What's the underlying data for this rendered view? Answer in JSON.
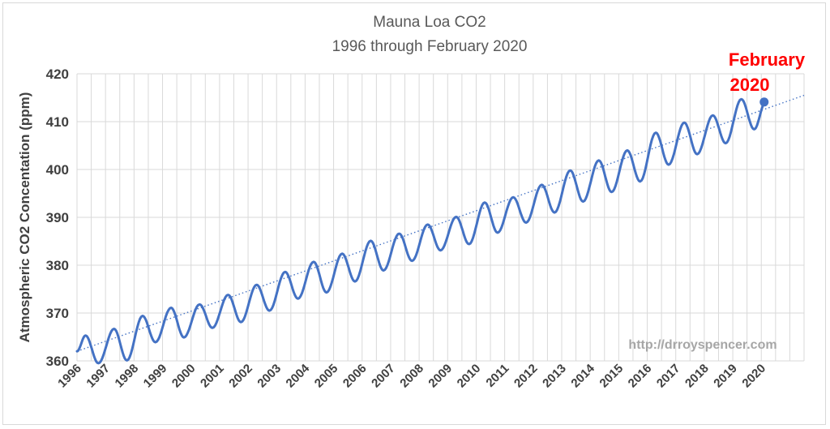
{
  "chart_data": {
    "type": "line",
    "title": "Mauna Loa CO2",
    "subtitle": "1996 through February 2020",
    "ylabel": "Atmospheric CO2 Concentation (ppm)",
    "xlabel": "",
    "ylim": [
      360,
      420
    ],
    "yticks": [
      "360",
      "370",
      "380",
      "390",
      "400",
      "410",
      "420"
    ],
    "xlim": [
      1996,
      2021.5
    ],
    "xticks": [
      "1996",
      "1997",
      "1998",
      "1999",
      "2000",
      "2001",
      "2002",
      "2003",
      "2004",
      "2005",
      "2006",
      "2007",
      "2008",
      "2009",
      "2010",
      "2011",
      "2012",
      "2013",
      "2014",
      "2015",
      "2016",
      "2017",
      "2018",
      "2019",
      "2020"
    ],
    "grid": "vertical and horizontal",
    "series": [
      {
        "name": "",
        "color": "#4472c4",
        "peaks": [
          [
            1996.3,
            365.3
          ],
          [
            1997.3,
            366.7
          ],
          [
            1998.3,
            369.4
          ],
          [
            1999.3,
            371.1
          ],
          [
            2000.3,
            371.8
          ],
          [
            2001.3,
            373.8
          ],
          [
            2002.3,
            375.9
          ],
          [
            2003.3,
            378.6
          ],
          [
            2004.3,
            380.7
          ],
          [
            2005.3,
            382.4
          ],
          [
            2006.3,
            385.1
          ],
          [
            2007.3,
            386.6
          ],
          [
            2008.3,
            388.5
          ],
          [
            2009.3,
            390.1
          ],
          [
            2010.3,
            393.1
          ],
          [
            2011.3,
            394.2
          ],
          [
            2012.3,
            396.8
          ],
          [
            2013.3,
            399.8
          ],
          [
            2014.3,
            401.9
          ],
          [
            2015.3,
            404.0
          ],
          [
            2016.3,
            407.7
          ],
          [
            2017.3,
            409.8
          ],
          [
            2018.3,
            411.3
          ],
          [
            2019.3,
            414.7
          ]
        ],
        "troughs": [
          [
            1996.75,
            359.5
          ],
          [
            1997.75,
            360.1
          ],
          [
            1998.75,
            363.9
          ],
          [
            1999.75,
            364.9
          ],
          [
            2000.75,
            366.9
          ],
          [
            2001.75,
            368.1
          ],
          [
            2002.75,
            370.5
          ],
          [
            2003.75,
            373.0
          ],
          [
            2004.75,
            374.3
          ],
          [
            2005.75,
            376.6
          ],
          [
            2006.75,
            378.9
          ],
          [
            2007.75,
            380.9
          ],
          [
            2008.75,
            383.1
          ],
          [
            2009.75,
            384.4
          ],
          [
            2010.75,
            386.8
          ],
          [
            2011.75,
            388.9
          ],
          [
            2012.75,
            391.0
          ],
          [
            2013.75,
            393.3
          ],
          [
            2014.75,
            395.3
          ],
          [
            2015.75,
            397.5
          ],
          [
            2016.75,
            401.0
          ],
          [
            2017.75,
            403.2
          ],
          [
            2018.75,
            405.5
          ],
          [
            2019.75,
            408.4
          ]
        ],
        "start": [
          1996.0,
          362.0
        ],
        "end": [
          2020.15,
          414.1
        ]
      }
    ],
    "trendline": {
      "style": "dotted",
      "color": "#4472c4",
      "from": [
        1996.0,
        362.0
      ],
      "to": [
        2021.5,
        415.5
      ]
    },
    "highlight_point": {
      "x": 2020.1,
      "y": 414.1,
      "color": "#4472c4",
      "label_line1": "February",
      "label_line2": "2020",
      "label_color": "#ff0000"
    },
    "watermark": "http://drroyspencer.com"
  }
}
